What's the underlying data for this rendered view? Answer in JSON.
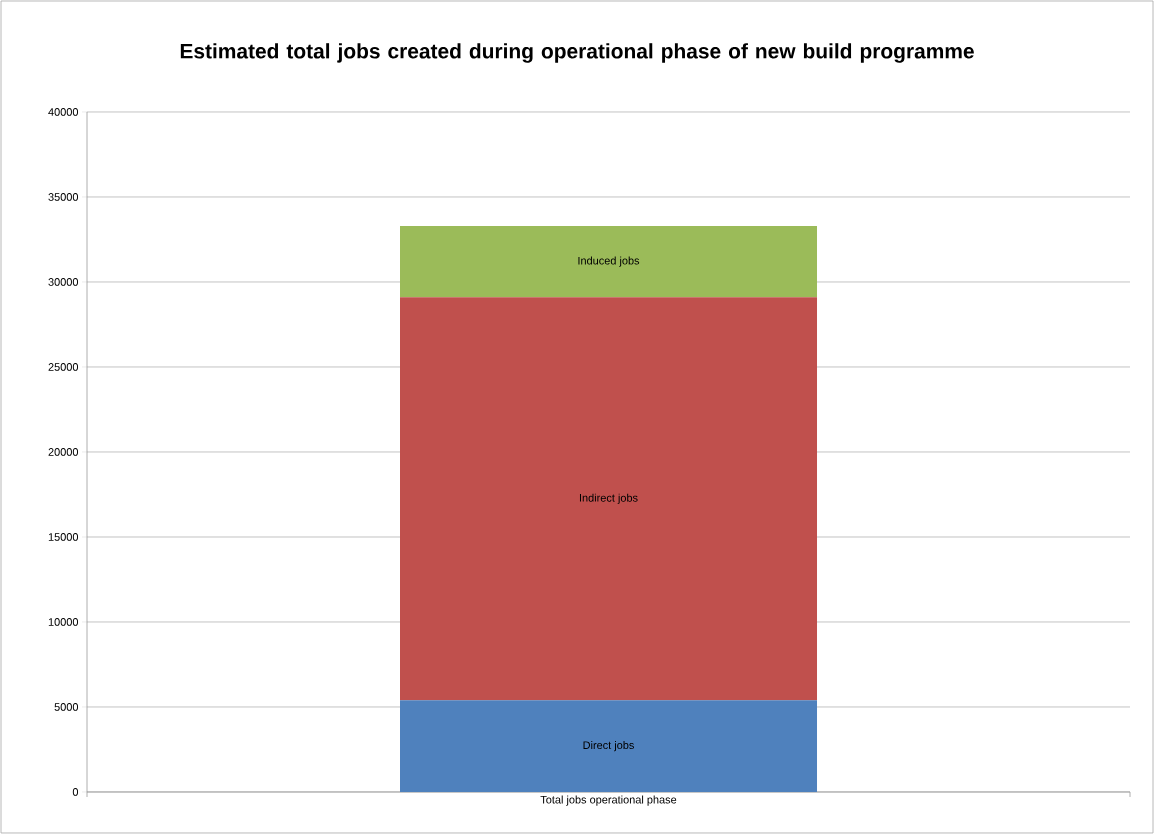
{
  "chart_data": {
    "type": "bar",
    "stacked": true,
    "title": "Estimated total jobs created during operational phase of new build programme",
    "categories": [
      "Total jobs operational phase"
    ],
    "series": [
      {
        "name": "Direct jobs",
        "color": "#4f81bd",
        "values": [
          5400
        ]
      },
      {
        "name": "Indirect jobs",
        "color": "#c0504d",
        "values": [
          23700
        ]
      },
      {
        "name": "Induced jobs",
        "color": "#9bbb59",
        "values": [
          4200
        ]
      }
    ],
    "ylim": [
      0,
      40000
    ],
    "yticks": [
      0,
      5000,
      10000,
      15000,
      20000,
      25000,
      30000,
      35000,
      40000
    ],
    "grid": "y"
  }
}
